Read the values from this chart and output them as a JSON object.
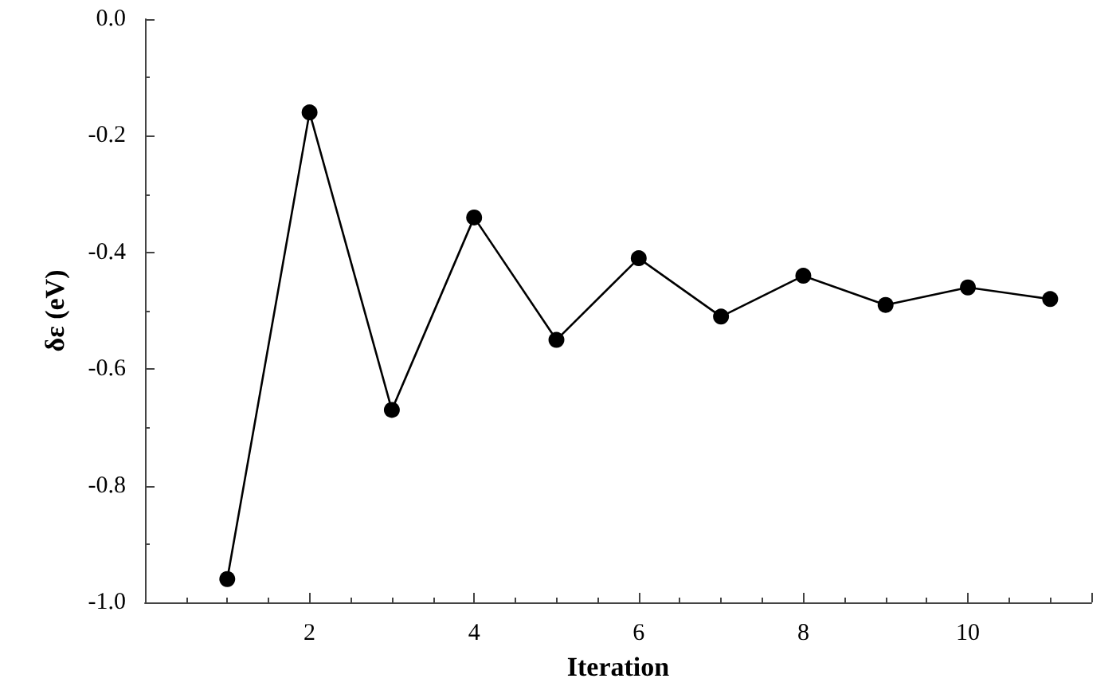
{
  "chart_data": {
    "type": "line",
    "xlabel": "Iteration",
    "ylabel": "δε (eV)",
    "x": [
      1,
      2,
      3,
      4,
      5,
      6,
      7,
      8,
      9,
      10,
      11
    ],
    "series": [
      {
        "color": "#000000",
        "values": [
          -0.96,
          -0.16,
          -0.67,
          -0.34,
          -0.55,
          -0.41,
          -0.51,
          -0.44,
          -0.49,
          -0.46,
          -0.48
        ]
      }
    ],
    "xlim": [
      0,
      11.5
    ],
    "xticks": [
      2,
      4,
      6,
      8,
      10
    ],
    "ylim": [
      -1.0,
      0.0
    ],
    "yticks": [
      {
        "value": -1.0,
        "label": "-1.0"
      },
      {
        "value": -0.8,
        "label": "-0.8"
      },
      {
        "value": -0.6,
        "label": "-0.6"
      },
      {
        "value": -0.4,
        "label": "-0.4"
      },
      {
        "value": -0.2,
        "label": "-0.2"
      },
      {
        "value": 0.0,
        "label": "0.0"
      }
    ],
    "grid": false,
    "marker": "circle",
    "line_style": "solid"
  }
}
